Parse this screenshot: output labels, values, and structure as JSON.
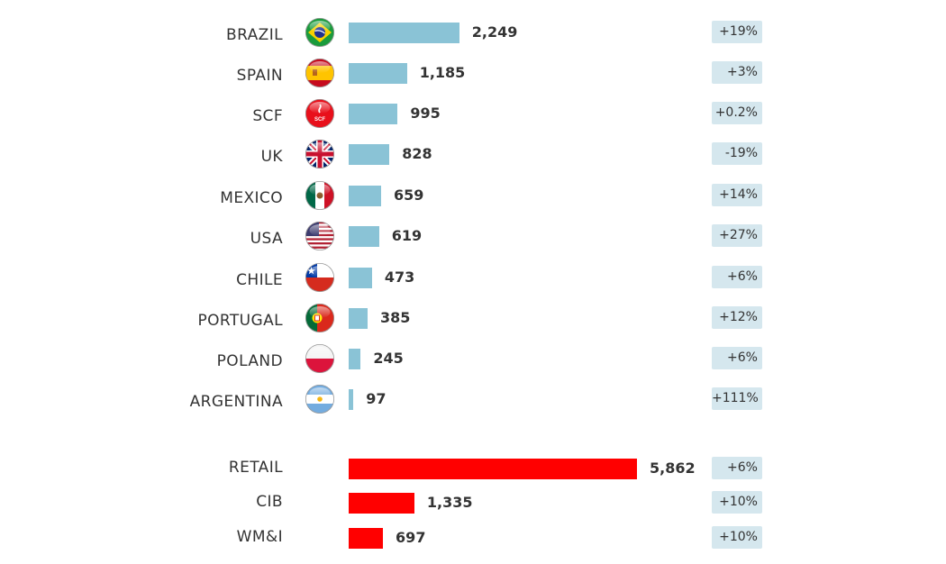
{
  "chart_data": [
    {
      "type": "bar",
      "orientation": "horizontal",
      "color": "#8ac3d6",
      "categories": [
        "BRAZIL",
        "SPAIN",
        "SCF",
        "UK",
        "MEXICO",
        "USA",
        "CHILE",
        "PORTUGAL",
        "POLAND",
        "ARGENTINA"
      ],
      "values": [
        2249,
        1185,
        995,
        828,
        659,
        619,
        473,
        385,
        245,
        97
      ],
      "value_labels": [
        "2,249",
        "1,185",
        "995",
        "828",
        "659",
        "619",
        "473",
        "385",
        "245",
        "97"
      ],
      "changes": [
        "+19%",
        "+3%",
        "+0.2%",
        "-19%",
        "+14%",
        "+27%",
        "+6%",
        "+12%",
        "+6%",
        "+111%"
      ],
      "icons": [
        "brazil-flag-icon",
        "spain-flag-icon",
        "scf-logo-icon",
        "uk-flag-icon",
        "mexico-flag-icon",
        "usa-flag-icon",
        "chile-flag-icon",
        "portugal-flag-icon",
        "poland-flag-icon",
        "argentina-flag-icon"
      ],
      "scf_icon_text": "SCF"
    },
    {
      "type": "bar",
      "orientation": "horizontal",
      "color": "#ff0000",
      "categories": [
        "RETAIL",
        "CIB",
        "WM&I"
      ],
      "values": [
        5862,
        1335,
        697
      ],
      "value_labels": [
        "5,862",
        "1,335",
        "697"
      ],
      "changes": [
        "+6%",
        "+10%",
        "+10%"
      ]
    }
  ]
}
